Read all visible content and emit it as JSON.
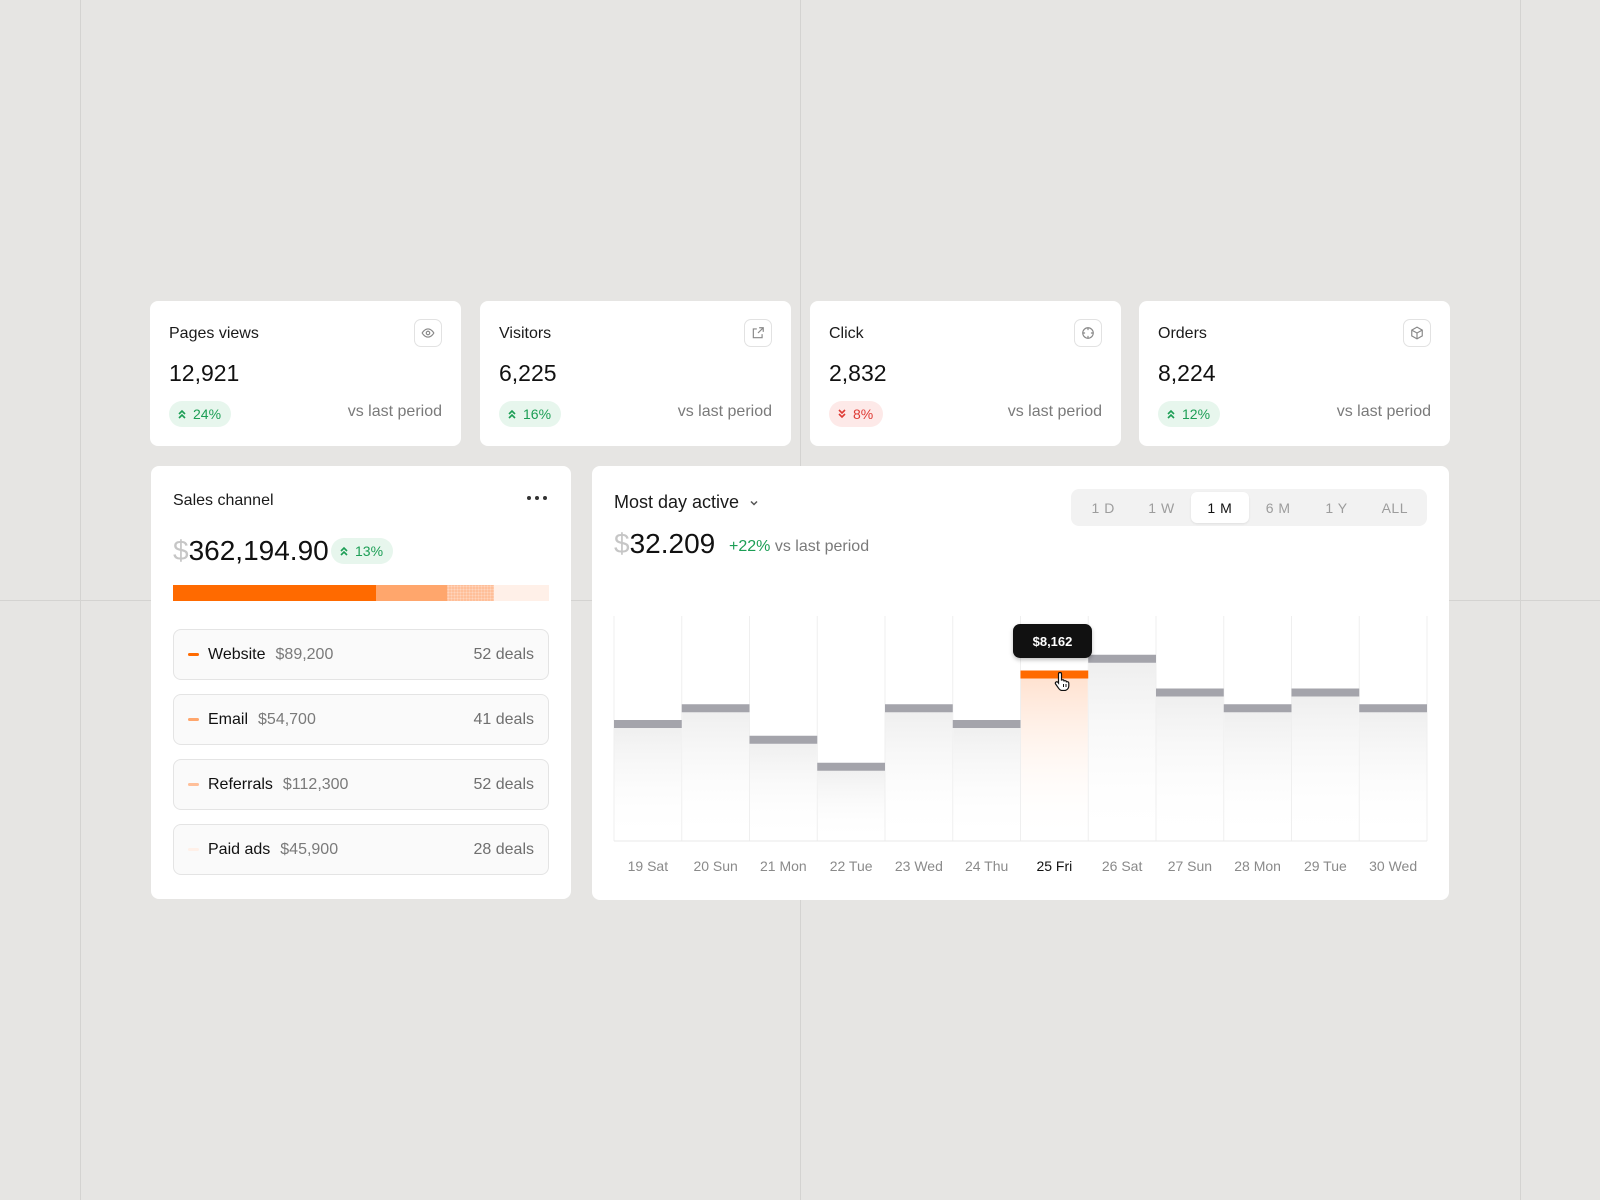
{
  "stats": [
    {
      "title": "Pages views",
      "value": "12,921",
      "change": "24%",
      "direction": "up",
      "comparison": "vs last period",
      "icon": "eye-icon"
    },
    {
      "title": "Visitors",
      "value": "6,225",
      "change": "16%",
      "direction": "up",
      "comparison": "vs last period",
      "icon": "external-link-icon"
    },
    {
      "title": "Click",
      "value": "2,832",
      "change": "8%",
      "direction": "down",
      "comparison": "vs last period",
      "icon": "crosshair-icon"
    },
    {
      "title": "Orders",
      "value": "8,224",
      "change": "12%",
      "direction": "up",
      "comparison": "vs last period",
      "icon": "box-icon"
    }
  ],
  "sales_channel": {
    "title": "Sales channel",
    "currency": "$",
    "amount": "362,194.90",
    "change": "13%",
    "channels": [
      {
        "name": "Website",
        "amount": "$89,200",
        "deals": "52 deals",
        "color": "#ff6a00"
      },
      {
        "name": "Email",
        "amount": "$54,700",
        "deals": "41 deals",
        "color": "#ffa66c"
      },
      {
        "name": "Referrals",
        "amount": "$112,300",
        "deals": "52 deals",
        "color": "#ffbf99"
      },
      {
        "name": "Paid ads",
        "amount": "$45,900",
        "deals": "28 deals",
        "color": "#fff0e8"
      }
    ],
    "distribution": [
      54,
      19,
      12.5,
      14.5
    ]
  },
  "most_day_active": {
    "title": "Most day active",
    "currency": "$",
    "amount": "32.209",
    "change": "+22%",
    "comparison": "vs last period",
    "ranges": [
      "1 D",
      "1 W",
      "1 M",
      "6 M",
      "1 Y",
      "ALL"
    ],
    "selected_range": "1 M",
    "tooltip": "$8,162"
  },
  "colors": {
    "accent": "#ff6a00",
    "positive": "#1c9e55",
    "negative": "#de3b35",
    "bar": "#a4a4ab"
  },
  "chart_data": {
    "type": "bar",
    "categories": [
      "19 Sat",
      "20 Sun",
      "21 Mon",
      "22 Tue",
      "23 Wed",
      "24 Thu",
      "25 Fri",
      "26 Sat",
      "27 Sun",
      "28 Mon",
      "29 Tue",
      "30 Wed"
    ],
    "values": [
      5.2,
      5.9,
      4.5,
      3.3,
      5.9,
      5.2,
      7.4,
      8.1,
      6.6,
      5.9,
      6.6,
      5.9
    ],
    "highlight_index": 6,
    "ylim": [
      0,
      10
    ],
    "grid": true
  }
}
